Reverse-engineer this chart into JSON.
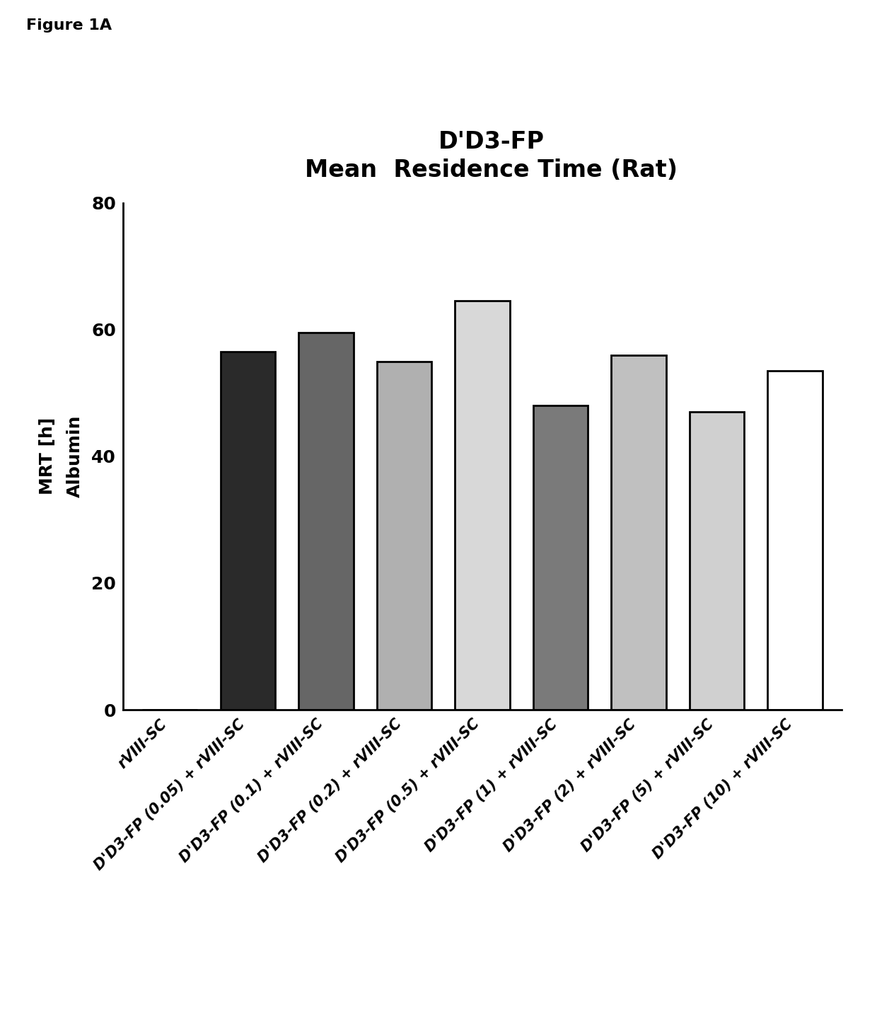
{
  "title_line1": "D'D3-FP",
  "title_line2": "Mean  Residence Time (Rat)",
  "figure_label": "Figure 1A",
  "ylabel": "MRT [h]\nAlbumin",
  "ylim": [
    0,
    80
  ],
  "yticks": [
    0,
    20,
    40,
    60,
    80
  ],
  "categories": [
    "rVIII-SC",
    "D'D3-FP (0.05) + rVIII-SC",
    "D'D3-FP (0.1) + rVIII-SC",
    "D'D3-FP (0.2) + rVIII-SC",
    "D'D3-FP (0.5) + rVIII-SC",
    "D'D3-FP (1) + rVIII-SC",
    "D'D3-FP (2) + rVIII-SC",
    "D'D3-FP (5) + rVIII-SC",
    "D'D3-FP (10) + rVIII-SC"
  ],
  "values": [
    0.0,
    56.5,
    59.5,
    55.0,
    64.5,
    48.0,
    56.0,
    47.0,
    53.5
  ],
  "bar_facecolors": [
    "white",
    "#2a2a2a",
    "#666666",
    "#b0b0b0",
    "#d8d8d8",
    "#7a7a7a",
    "#c0c0c0",
    "#d0d0d0",
    "white"
  ],
  "bar_hatches": [
    "",
    "",
    "",
    "",
    "",
    "",
    "",
    "",
    ""
  ],
  "bar_edgecolor": "black",
  "bar_linewidth": 2.0,
  "bar_width": 0.7,
  "title_fontsize": 24,
  "ylabel_fontsize": 18,
  "tick_fontsize": 18,
  "xtick_fontsize": 15,
  "background_color": "white",
  "figure_label_fontsize": 16
}
